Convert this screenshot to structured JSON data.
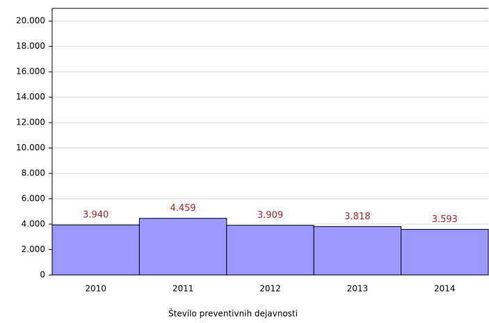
{
  "chart_data": {
    "type": "bar",
    "categories": [
      "2010",
      "2011",
      "2012",
      "2013",
      "2014"
    ],
    "values": [
      3940,
      4459,
      3909,
      3818,
      3593
    ],
    "value_labels": [
      "3.940",
      "4.459",
      "3.909",
      "3.818",
      "3.593"
    ],
    "color": "#9999ff",
    "x_label": "Število preventivnih dejavnosti",
    "ylim": [
      0,
      21000
    ],
    "yticks": [
      0,
      {
        "value": 2000,
        "label": "2.000"
      },
      {
        "value": 4000,
        "label": "4.000"
      },
      {
        "value": 6000,
        "label": "6.000"
      },
      {
        "value": 8000,
        "label": "8.000"
      },
      {
        "value": 10000,
        "label": "10.000"
      },
      {
        "value": 12000,
        "label": "12.000"
      },
      {
        "value": 14000,
        "label": "14.000"
      },
      {
        "value": 16000,
        "label": "16.000"
      },
      {
        "value": 18000,
        "label": "18.000"
      },
      {
        "value": 20000,
        "label": "20.000"
      }
    ],
    "grid": true
  }
}
